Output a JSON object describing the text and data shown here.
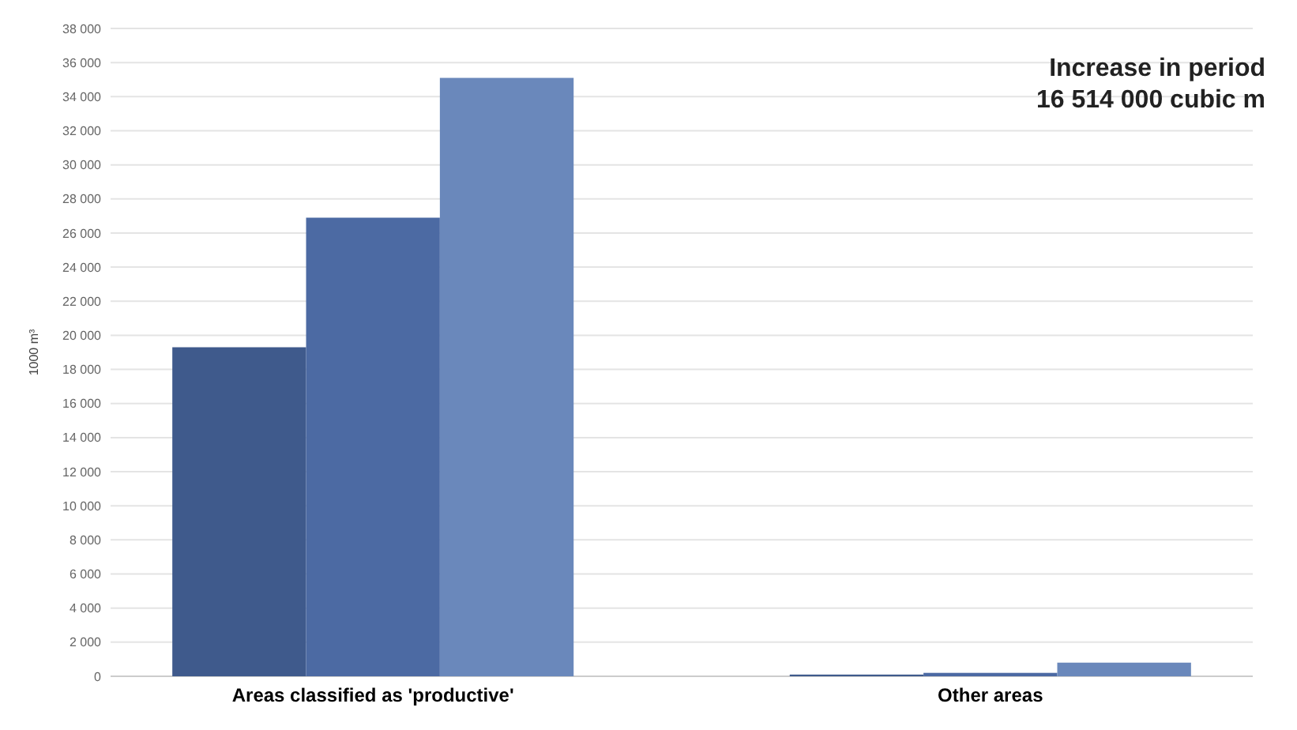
{
  "chart_data": {
    "type": "bar",
    "ylabel": "1000 m³",
    "categories": [
      "Areas classified as 'productive'",
      "Other areas"
    ],
    "series": [
      {
        "color": "#3f5a8c",
        "values": [
          19300,
          100
        ]
      },
      {
        "color": "#4c6aa3",
        "values": [
          26900,
          200
        ]
      },
      {
        "color": "#6a88bb",
        "values": [
          35100,
          800
        ]
      }
    ],
    "ylim": [
      0,
      38000
    ],
    "yticks": [
      {
        "value": 0,
        "label": "0"
      },
      {
        "value": 2000,
        "label": "2 000"
      },
      {
        "value": 4000,
        "label": "4 000"
      },
      {
        "value": 6000,
        "label": "6 000"
      },
      {
        "value": 8000,
        "label": "8 000"
      },
      {
        "value": 10000,
        "label": "10 000"
      },
      {
        "value": 12000,
        "label": "12 000"
      },
      {
        "value": 14000,
        "label": "14 000"
      },
      {
        "value": 16000,
        "label": "16 000"
      },
      {
        "value": 18000,
        "label": "18 000"
      },
      {
        "value": 20000,
        "label": "20 000"
      },
      {
        "value": 22000,
        "label": "22 000"
      },
      {
        "value": 24000,
        "label": "24 000"
      },
      {
        "value": 26000,
        "label": "26 000"
      },
      {
        "value": 28000,
        "label": "28 000"
      },
      {
        "value": 30000,
        "label": "30 000"
      },
      {
        "value": 32000,
        "label": "32 000"
      },
      {
        "value": 34000,
        "label": "34 000"
      },
      {
        "value": 36000,
        "label": "36 000"
      },
      {
        "value": 38000,
        "label": "38 000"
      }
    ],
    "grid": "y",
    "annotations": [
      "Increase in period\n16 514 000 cubic m"
    ]
  }
}
